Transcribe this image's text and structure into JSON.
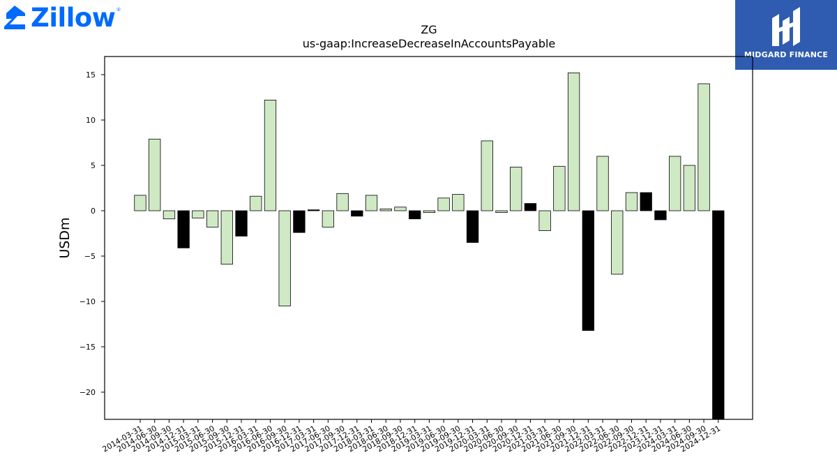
{
  "logos": {
    "left": {
      "text": "Zillow",
      "color": "#006aff",
      "icon": "zillow-house-icon"
    },
    "right": {
      "text": "MIDGARD FINANCE",
      "background": "#2f5cb0",
      "icon": "midgard-emblem-icon"
    }
  },
  "chart_data": {
    "type": "bar",
    "title": "ZG",
    "subtitle": "us-gaap:IncreaseDecreaseInAccountsPayable",
    "xlabel": "",
    "ylabel": "USDm",
    "ylim": [
      -23,
      17
    ],
    "yticks": [
      -20,
      -15,
      -10,
      -5,
      0,
      5,
      10,
      15
    ],
    "grid": false,
    "colors": {
      "quarter": "#cfe9c5",
      "q4": "#000000",
      "edge": "#000000"
    },
    "categories": [
      "2014-03-31",
      "2014-06-30",
      "2014-09-30",
      "2014-12-31",
      "2015-03-31",
      "2015-06-30",
      "2015-09-30",
      "2015-12-31",
      "2016-03-31",
      "2016-06-30",
      "2016-09-30",
      "2016-12-31",
      "2017-03-31",
      "2017-06-30",
      "2017-09-30",
      "2017-12-31",
      "2018-03-31",
      "2018-06-30",
      "2018-09-30",
      "2018-12-31",
      "2019-03-31",
      "2019-06-30",
      "2019-09-30",
      "2019-12-31",
      "2020-03-31",
      "2020-06-30",
      "2020-09-30",
      "2020-12-31",
      "2021-03-31",
      "2021-06-30",
      "2021-09-30",
      "2021-12-31",
      "2022-03-31",
      "2022-06-30",
      "2022-09-30",
      "2022-12-31",
      "2023-12-31",
      "2024-03-31",
      "2024-06-30",
      "2024-09-30",
      "2024-12-31"
    ],
    "values": [
      1.7,
      7.9,
      -0.9,
      -4.1,
      -0.8,
      -1.8,
      -5.9,
      -2.8,
      1.6,
      12.2,
      -10.5,
      -2.4,
      0.1,
      -1.8,
      1.9,
      -0.6,
      1.7,
      0.2,
      0.4,
      -0.9,
      -0.2,
      1.4,
      1.8,
      -3.5,
      7.7,
      -0.2,
      4.8,
      0.8,
      -2.2,
      4.9,
      15.2,
      -13.2,
      6.0,
      -7.0,
      2.0,
      2.0,
      -1.0,
      6.0,
      5.0,
      14.0,
      -23.0
    ],
    "highlight": [
      false,
      false,
      false,
      true,
      false,
      false,
      false,
      true,
      false,
      false,
      false,
      true,
      true,
      false,
      false,
      true,
      false,
      false,
      false,
      true,
      false,
      false,
      false,
      true,
      false,
      false,
      false,
      true,
      false,
      false,
      false,
      true,
      false,
      false,
      false,
      true,
      true,
      false,
      false,
      false,
      true
    ]
  }
}
